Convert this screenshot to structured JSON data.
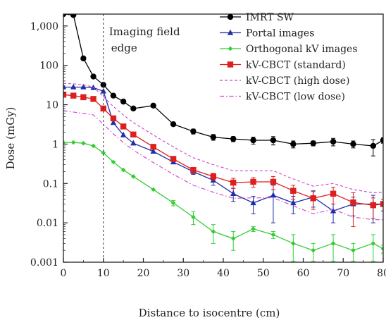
{
  "chart_data": {
    "type": "line",
    "title": "",
    "xlabel": "Distance to isocentre (cm)",
    "ylabel": "Dose (mGy)",
    "xlim": [
      0,
      80
    ],
    "ylim": [
      0.001,
      2000
    ],
    "y_scale": "log",
    "x_ticks": [
      0,
      10,
      20,
      30,
      40,
      50,
      60,
      70,
      80
    ],
    "x_tick_labels": [
      "0",
      "10",
      "20",
      "30",
      "40",
      "50",
      "60",
      "70",
      "80"
    ],
    "y_ticks": [
      0.001,
      0.01,
      0.1,
      1,
      10,
      100,
      1000
    ],
    "y_tick_labels": [
      "0.001",
      "0.01",
      "0.1",
      "1",
      "10",
      "100",
      "1,000"
    ],
    "grid": false,
    "legend_position": "top-right",
    "annotation": {
      "lines": [
        "Imaging field",
        "edge"
      ],
      "x": 10
    },
    "series": [
      {
        "name": "IMRT SW",
        "color": "#000000",
        "marker": "circle",
        "line_style": "solid",
        "x": [
          0,
          2.5,
          5,
          7.5,
          10,
          12.5,
          15,
          17.5,
          22.5,
          27.5,
          32.5,
          37.5,
          42.5,
          47.5,
          52.5,
          57.5,
          62.5,
          67.5,
          72.5,
          77.5,
          80
        ],
        "y": [
          2000,
          1900,
          150,
          52,
          32,
          17,
          12,
          8,
          9.5,
          3.2,
          2.1,
          1.5,
          1.35,
          1.25,
          1.25,
          1.0,
          1.05,
          1.15,
          1.0,
          0.9,
          1.25
        ],
        "err": [
          0,
          0,
          0,
          0,
          0,
          0,
          0,
          0,
          0,
          0,
          0.3,
          0.25,
          0.2,
          0.25,
          0.3,
          0.2,
          0.15,
          0.25,
          0.2,
          0.4,
          0.2
        ]
      },
      {
        "name": "Portal images",
        "color": "#1f2fa8",
        "marker": "triangle",
        "line_style": "solid",
        "x": [
          0,
          2.5,
          5,
          7.5,
          10,
          12.5,
          15,
          17.5,
          22.5,
          27.5,
          32.5,
          37.5,
          42.5,
          47.5,
          52.5,
          57.5,
          62.5,
          67.5,
          72.5,
          77.5,
          80
        ],
        "y": [
          28,
          28,
          28,
          27,
          22,
          3.5,
          1.7,
          1.05,
          0.65,
          0.35,
          0.2,
          0.12,
          0.055,
          0.032,
          0.05,
          0.032,
          0.045,
          0.02,
          0.03,
          0.03,
          0.03
        ],
        "err": [
          0,
          0,
          0,
          0,
          0,
          0,
          0,
          0,
          0,
          0,
          0.03,
          0.03,
          0.02,
          0.015,
          0.04,
          0.015,
          0.02,
          0.01,
          0.015,
          0.02,
          0.01
        ]
      },
      {
        "name": "Orthogonal kV images",
        "color": "#33cc33",
        "marker": "diamond",
        "line_style": "solid",
        "x": [
          0,
          2.5,
          5,
          7.5,
          10,
          12.5,
          15,
          17.5,
          22.5,
          27.5,
          32.5,
          37.5,
          42.5,
          47.5,
          52.5,
          57.5,
          62.5,
          67.5,
          72.5,
          77.5,
          80
        ],
        "y": [
          1.1,
          1.1,
          1.05,
          0.9,
          0.6,
          0.35,
          0.22,
          0.15,
          0.07,
          0.032,
          0.014,
          0.006,
          0.004,
          0.007,
          0.005,
          0.003,
          0.002,
          0.003,
          0.002,
          0.003,
          0.0022
        ],
        "err": [
          0,
          0,
          0,
          0,
          0,
          0,
          0,
          0,
          0,
          0.005,
          0.005,
          0.003,
          0.002,
          0.001,
          0.001,
          0.002,
          0.001,
          0.002,
          0.001,
          0.002,
          0.0005
        ]
      },
      {
        "name": "kV-CBCT (standard)",
        "color": "#dd1f1f",
        "marker": "square",
        "line_style": "solid",
        "x": [
          0,
          2.5,
          5,
          7.5,
          10,
          12.5,
          15,
          17.5,
          22.5,
          27.5,
          32.5,
          37.5,
          42.5,
          47.5,
          52.5,
          57.5,
          62.5,
          67.5,
          72.5,
          77.5,
          80
        ],
        "y": [
          18,
          17,
          15.5,
          14,
          8,
          4.5,
          2.8,
          1.75,
          0.85,
          0.42,
          0.22,
          0.15,
          0.105,
          0.11,
          0.11,
          0.065,
          0.042,
          0.055,
          0.033,
          0.028,
          0.03
        ],
        "err": [
          0,
          0,
          0,
          0,
          0,
          0,
          0,
          0,
          0,
          0,
          0,
          0.03,
          0.03,
          0.03,
          0.04,
          0.025,
          0.02,
          0.025,
          0.025,
          0.015,
          0.01
        ]
      },
      {
        "name": "kV-CBCT (high dose)",
        "color": "#cc44cc",
        "marker": "none",
        "line_style": "dashed",
        "x": [
          0,
          2.5,
          5,
          7.5,
          10,
          12.5,
          15,
          17.5,
          22.5,
          27.5,
          32.5,
          37.5,
          42.5,
          47.5,
          52.5,
          57.5,
          62.5,
          67.5,
          72.5,
          77.5,
          80
        ],
        "y": [
          35,
          34,
          32,
          28,
          16,
          9,
          5.5,
          3.5,
          1.7,
          0.85,
          0.45,
          0.3,
          0.21,
          0.21,
          0.21,
          0.13,
          0.085,
          0.1,
          0.07,
          0.058,
          0.06
        ]
      },
      {
        "name": "kV-CBCT (low dose)",
        "color": "#cc44cc",
        "marker": "none",
        "line_style": "dashdot",
        "x": [
          0,
          2.5,
          5,
          7.5,
          10,
          12.5,
          15,
          17.5,
          22.5,
          27.5,
          32.5,
          37.5,
          42.5,
          47.5,
          52.5,
          57.5,
          62.5,
          67.5,
          72.5,
          77.5,
          80
        ],
        "y": [
          7,
          6.5,
          6,
          5.5,
          3.2,
          1.8,
          1.1,
          0.7,
          0.34,
          0.17,
          0.09,
          0.06,
          0.042,
          0.043,
          0.043,
          0.027,
          0.017,
          0.022,
          0.014,
          0.012,
          0.012
        ]
      }
    ]
  }
}
